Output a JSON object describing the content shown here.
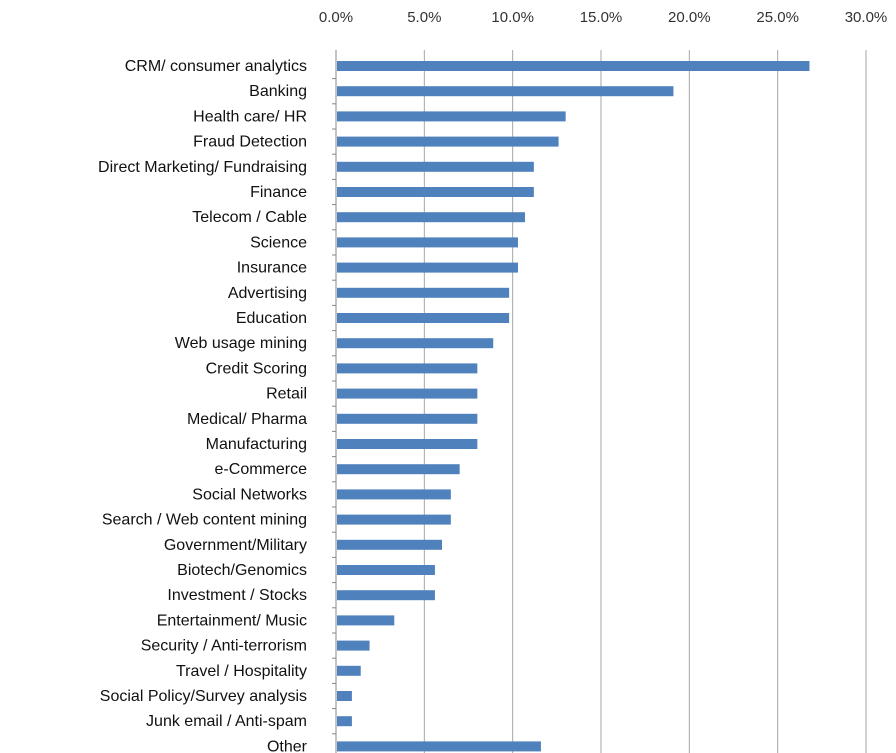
{
  "chart_data": {
    "type": "bar",
    "orientation": "horizontal",
    "title": "",
    "xlabel": "",
    "ylabel": "",
    "xlim": [
      0,
      30
    ],
    "x_ticks": [
      "0.0%",
      "5.0%",
      "10.0%",
      "15.0%",
      "20.0%",
      "25.0%",
      "30.0%"
    ],
    "x_axis_position": "top",
    "grid": true,
    "legend": "none",
    "bar_color": "#4f81bd",
    "categories": [
      "CRM/ consumer analytics",
      "Banking",
      "Health care/ HR",
      "Fraud Detection",
      "Direct Marketing/ Fundraising",
      "Finance",
      "Telecom / Cable",
      "Science",
      "Insurance",
      "Advertising",
      "Education",
      "Web usage mining",
      "Credit Scoring",
      "Retail",
      "Medical/ Pharma",
      "Manufacturing",
      "e-Commerce",
      "Social Networks",
      "Search / Web content mining",
      "Government/Military",
      "Biotech/Genomics",
      "Investment / Stocks",
      "Entertainment/ Music",
      "Security / Anti-terrorism",
      "Travel / Hospitality",
      "Social Policy/Survey analysis",
      "Junk email / Anti-spam",
      "Other"
    ],
    "values": [
      26.8,
      19.1,
      13.0,
      12.6,
      11.2,
      11.2,
      10.7,
      10.3,
      10.3,
      9.8,
      9.8,
      8.9,
      8.0,
      8.0,
      8.0,
      8.0,
      7.0,
      6.5,
      6.5,
      6.0,
      5.6,
      5.6,
      3.3,
      1.9,
      1.4,
      0.9,
      0.9,
      11.6
    ]
  }
}
